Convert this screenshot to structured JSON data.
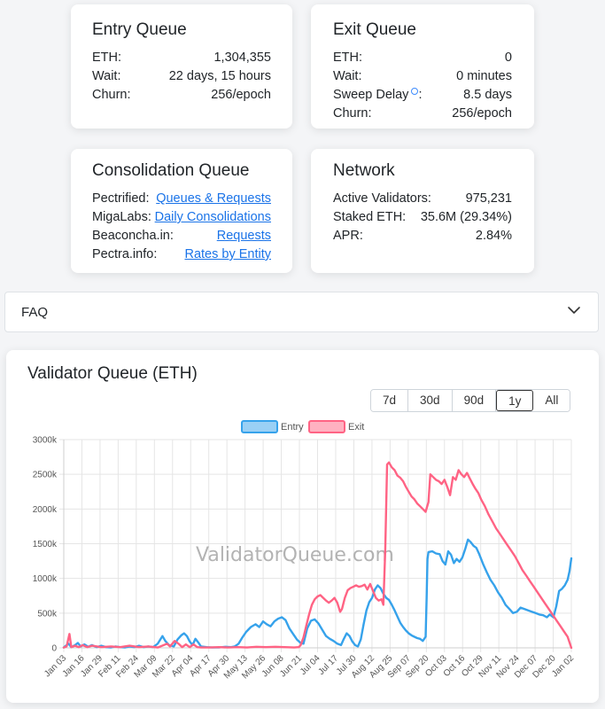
{
  "entry_queue": {
    "title": "Entry Queue",
    "rows": [
      {
        "label": "ETH:",
        "value": "1,304,355"
      },
      {
        "label": "Wait:",
        "value": "22 days, 15 hours"
      },
      {
        "label": "Churn:",
        "value": "256/epoch"
      }
    ]
  },
  "exit_queue": {
    "title": "Exit Queue",
    "rows": [
      {
        "label": "ETH:",
        "value": "0"
      },
      {
        "label": "Wait:",
        "value": "0 minutes"
      },
      {
        "label": "Sweep Delay",
        "suffix": ":",
        "value": "8.5 days"
      },
      {
        "label": "Churn:",
        "value": "256/epoch"
      }
    ]
  },
  "consolidation_queue": {
    "title": "Consolidation Queue",
    "rows": [
      {
        "label": "Pectrified:",
        "link": "Queues & Requests"
      },
      {
        "label": "MigaLabs:",
        "link": "Daily Consolidations"
      },
      {
        "label": "Beaconcha.in:",
        "link": "Requests"
      },
      {
        "label": "Pectra.info:",
        "link": "Rates by Entity"
      }
    ]
  },
  "network": {
    "title": "Network",
    "rows": [
      {
        "label": "Active Validators:",
        "value": "975,231"
      },
      {
        "label": "Staked ETH:",
        "value": "35.6M (29.34%)"
      },
      {
        "label": "APR:",
        "value": "2.84%"
      }
    ]
  },
  "faq": {
    "label": "FAQ",
    "icon": "chevron-down-icon"
  },
  "chart_card": {
    "title": "Validator Queue (ETH)",
    "range_buttons": [
      "7d",
      "30d",
      "90d",
      "1y",
      "All"
    ],
    "active_range": "1y",
    "watermark": "ValidatorQueue.com"
  },
  "colors": {
    "entry": "#36a2eb",
    "entry_fill": "#9ad0f5",
    "exit": "#ff6384",
    "exit_fill": "#ffb1c1",
    "link": "#1a73e8"
  },
  "chart_data": {
    "type": "line",
    "title": "",
    "xlabel": "",
    "ylabel": "",
    "legend_position": "top",
    "grid": true,
    "ylim": [
      0,
      3000
    ],
    "y_ticks": [
      "0",
      "500k",
      "1000k",
      "1500k",
      "2000k",
      "2500k",
      "3000k"
    ],
    "x_ticks": [
      "Jan 03",
      "Jan 16",
      "Jan 29",
      "Feb 11",
      "Feb 24",
      "Mar 09",
      "Mar 22",
      "Apr 04",
      "Apr 17",
      "Apr 30",
      "May 13",
      "May 26",
      "Jun 08",
      "Jun 21",
      "Jul 04",
      "Jul 17",
      "Jul 30",
      "Aug 12",
      "Aug 25",
      "Sep 07",
      "Sep 20",
      "Oct 03",
      "Oct 16",
      "Oct 29",
      "Nov 11",
      "Nov 24",
      "Dec 07",
      "Dec 20",
      "Jan 02"
    ],
    "x_unit": "days since Jan 03",
    "series": [
      {
        "name": "Entry",
        "points": [
          [
            0,
            5
          ],
          [
            5,
            60
          ],
          [
            8,
            10
          ],
          [
            12,
            40
          ],
          [
            15,
            70
          ],
          [
            18,
            20
          ],
          [
            22,
            50
          ],
          [
            26,
            15
          ],
          [
            30,
            40
          ],
          [
            35,
            10
          ],
          [
            40,
            30
          ],
          [
            45,
            10
          ],
          [
            50,
            5
          ],
          [
            55,
            20
          ],
          [
            60,
            10
          ],
          [
            65,
            5
          ],
          [
            70,
            20
          ],
          [
            75,
            10
          ],
          [
            80,
            30
          ],
          [
            85,
            10
          ],
          [
            90,
            20
          ],
          [
            95,
            10
          ],
          [
            100,
            60
          ],
          [
            105,
            170
          ],
          [
            108,
            100
          ],
          [
            112,
            40
          ],
          [
            117,
            20
          ],
          [
            121,
            120
          ],
          [
            125,
            180
          ],
          [
            128,
            210
          ],
          [
            131,
            170
          ],
          [
            134,
            90
          ],
          [
            137,
            40
          ],
          [
            140,
            130
          ],
          [
            143,
            80
          ],
          [
            146,
            20
          ],
          [
            152,
            10
          ],
          [
            158,
            5
          ],
          [
            165,
            5
          ],
          [
            172,
            15
          ],
          [
            178,
            10
          ],
          [
            182,
            20
          ],
          [
            186,
            60
          ],
          [
            190,
            150
          ],
          [
            194,
            230
          ],
          [
            199,
            300
          ],
          [
            204,
            340
          ],
          [
            208,
            300
          ],
          [
            212,
            380
          ],
          [
            216,
            340
          ],
          [
            220,
            310
          ],
          [
            224,
            380
          ],
          [
            228,
            420
          ],
          [
            232,
            440
          ],
          [
            236,
            400
          ],
          [
            240,
            280
          ],
          [
            244,
            200
          ],
          [
            248,
            120
          ],
          [
            252,
            70
          ],
          [
            255,
            60
          ],
          [
            259,
            280
          ],
          [
            263,
            390
          ],
          [
            267,
            410
          ],
          [
            271,
            350
          ],
          [
            275,
            260
          ],
          [
            279,
            170
          ],
          [
            283,
            130
          ],
          [
            287,
            100
          ],
          [
            291,
            60
          ],
          [
            295,
            40
          ],
          [
            298,
            130
          ],
          [
            301,
            210
          ],
          [
            304,
            170
          ],
          [
            307,
            90
          ],
          [
            310,
            40
          ],
          [
            313,
            20
          ],
          [
            316,
            120
          ],
          [
            319,
            340
          ],
          [
            322,
            540
          ],
          [
            325,
            660
          ],
          [
            328,
            720
          ],
          [
            331,
            840
          ],
          [
            334,
            900
          ],
          [
            337,
            860
          ],
          [
            340,
            780
          ],
          [
            343,
            720
          ],
          [
            346,
            690
          ],
          [
            349,
            620
          ],
          [
            352,
            540
          ],
          [
            355,
            450
          ],
          [
            358,
            360
          ],
          [
            361,
            300
          ],
          [
            364,
            250
          ],
          [
            367,
            210
          ],
          [
            370,
            180
          ],
          [
            373,
            160
          ],
          [
            376,
            140
          ],
          [
            379,
            130
          ],
          [
            382,
            100
          ],
          [
            385,
            160
          ],
          [
            386,
            700
          ],
          [
            387,
            1280
          ],
          [
            388,
            1380
          ],
          [
            392,
            1390
          ],
          [
            396,
            1360
          ],
          [
            400,
            1350
          ],
          [
            403,
            1250
          ],
          [
            406,
            1200
          ],
          [
            409,
            1390
          ],
          [
            412,
            1340
          ],
          [
            415,
            1220
          ],
          [
            418,
            1280
          ],
          [
            421,
            1240
          ],
          [
            424,
            1300
          ],
          [
            427,
            1420
          ],
          [
            430,
            1560
          ],
          [
            433,
            1520
          ],
          [
            436,
            1470
          ],
          [
            439,
            1440
          ],
          [
            442,
            1350
          ],
          [
            446,
            1210
          ],
          [
            450,
            1090
          ],
          [
            454,
            980
          ],
          [
            458,
            900
          ],
          [
            462,
            800
          ],
          [
            466,
            720
          ],
          [
            470,
            620
          ],
          [
            474,
            560
          ],
          [
            478,
            500
          ],
          [
            482,
            520
          ],
          [
            486,
            580
          ],
          [
            490,
            560
          ],
          [
            494,
            540
          ],
          [
            498,
            520
          ],
          [
            502,
            500
          ],
          [
            506,
            480
          ],
          [
            510,
            470
          ],
          [
            514,
            440
          ],
          [
            517,
            480
          ],
          [
            521,
            440
          ],
          [
            524,
            600
          ],
          [
            527,
            820
          ],
          [
            530,
            850
          ],
          [
            533,
            900
          ],
          [
            536,
            980
          ],
          [
            538,
            1100
          ],
          [
            540,
            1290
          ]
        ]
      },
      {
        "name": "Exit",
        "points": [
          [
            0,
            5
          ],
          [
            3,
            20
          ],
          [
            6,
            200
          ],
          [
            8,
            10
          ],
          [
            12,
            30
          ],
          [
            16,
            10
          ],
          [
            20,
            40
          ],
          [
            25,
            10
          ],
          [
            30,
            30
          ],
          [
            40,
            10
          ],
          [
            50,
            20
          ],
          [
            60,
            10
          ],
          [
            70,
            30
          ],
          [
            80,
            10
          ],
          [
            90,
            20
          ],
          [
            100,
            5
          ],
          [
            110,
            60
          ],
          [
            113,
            20
          ],
          [
            118,
            100
          ],
          [
            122,
            60
          ],
          [
            126,
            10
          ],
          [
            130,
            50
          ],
          [
            134,
            10
          ],
          [
            138,
            50
          ],
          [
            142,
            10
          ],
          [
            146,
            5
          ],
          [
            155,
            5
          ],
          [
            165,
            10
          ],
          [
            175,
            5
          ],
          [
            185,
            10
          ],
          [
            195,
            5
          ],
          [
            205,
            15
          ],
          [
            215,
            10
          ],
          [
            225,
            15
          ],
          [
            235,
            10
          ],
          [
            245,
            5
          ],
          [
            250,
            10
          ],
          [
            252,
            40
          ],
          [
            255,
            150
          ],
          [
            258,
            320
          ],
          [
            261,
            480
          ],
          [
            264,
            620
          ],
          [
            267,
            700
          ],
          [
            270,
            740
          ],
          [
            273,
            760
          ],
          [
            276,
            720
          ],
          [
            279,
            680
          ],
          [
            282,
            650
          ],
          [
            285,
            680
          ],
          [
            288,
            720
          ],
          [
            291,
            650
          ],
          [
            294,
            520
          ],
          [
            296,
            560
          ],
          [
            299,
            720
          ],
          [
            302,
            830
          ],
          [
            305,
            860
          ],
          [
            308,
            880
          ],
          [
            311,
            900
          ],
          [
            314,
            880
          ],
          [
            317,
            890
          ],
          [
            320,
            910
          ],
          [
            323,
            840
          ],
          [
            326,
            920
          ],
          [
            329,
            820
          ],
          [
            332,
            720
          ],
          [
            335,
            680
          ],
          [
            338,
            700
          ],
          [
            340,
            620
          ],
          [
            342,
            1400
          ],
          [
            344,
            2640
          ],
          [
            346,
            2670
          ],
          [
            349,
            2600
          ],
          [
            352,
            2560
          ],
          [
            355,
            2480
          ],
          [
            358,
            2450
          ],
          [
            361,
            2400
          ],
          [
            364,
            2320
          ],
          [
            367,
            2250
          ],
          [
            370,
            2180
          ],
          [
            373,
            2140
          ],
          [
            376,
            2080
          ],
          [
            379,
            2040
          ],
          [
            382,
            2000
          ],
          [
            385,
            1960
          ],
          [
            388,
            2100
          ],
          [
            390,
            2500
          ],
          [
            393,
            2460
          ],
          [
            396,
            2420
          ],
          [
            399,
            2400
          ],
          [
            402,
            2360
          ],
          [
            405,
            2420
          ],
          [
            408,
            2320
          ],
          [
            411,
            2200
          ],
          [
            414,
            2460
          ],
          [
            417,
            2420
          ],
          [
            420,
            2560
          ],
          [
            423,
            2500
          ],
          [
            426,
            2460
          ],
          [
            429,
            2520
          ],
          [
            432,
            2440
          ],
          [
            435,
            2360
          ],
          [
            438,
            2290
          ],
          [
            441,
            2230
          ],
          [
            444,
            2140
          ],
          [
            448,
            2040
          ],
          [
            452,
            1920
          ],
          [
            456,
            1820
          ],
          [
            460,
            1720
          ],
          [
            464,
            1640
          ],
          [
            468,
            1560
          ],
          [
            472,
            1480
          ],
          [
            476,
            1400
          ],
          [
            480,
            1320
          ],
          [
            484,
            1220
          ],
          [
            488,
            1120
          ],
          [
            492,
            1040
          ],
          [
            496,
            960
          ],
          [
            500,
            880
          ],
          [
            504,
            800
          ],
          [
            508,
            720
          ],
          [
            512,
            640
          ],
          [
            516,
            560
          ],
          [
            520,
            480
          ],
          [
            524,
            400
          ],
          [
            528,
            320
          ],
          [
            532,
            240
          ],
          [
            536,
            160
          ],
          [
            540,
            0
          ]
        ]
      }
    ]
  }
}
